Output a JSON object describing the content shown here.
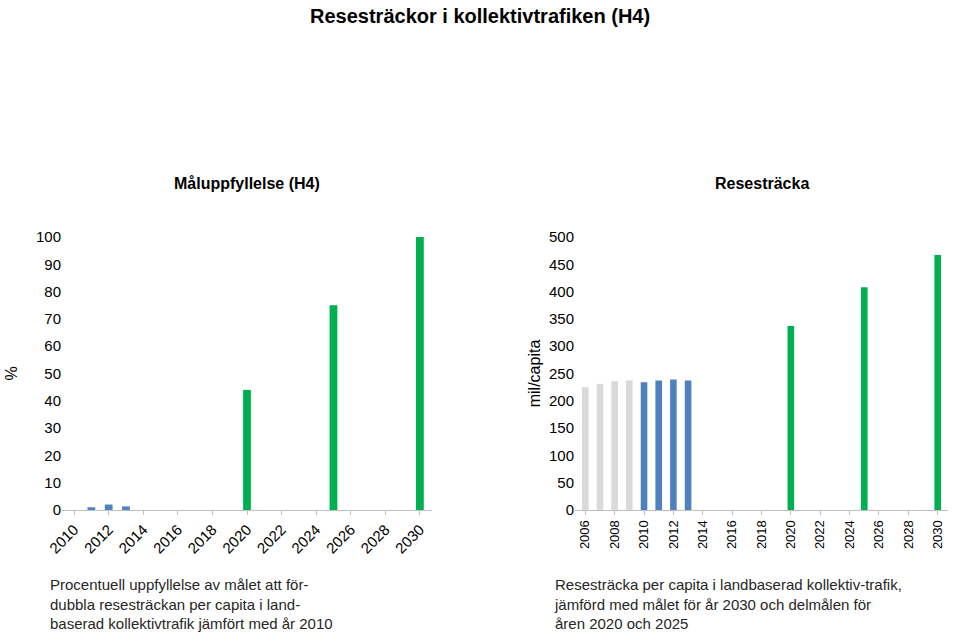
{
  "title": "Resesträckor i kollektivtrafiken (H4)",
  "chart_data": [
    {
      "type": "bar",
      "title": "Måluppfyllelse (H4)",
      "y_label": "%",
      "categories": [
        "2010",
        null,
        "2012",
        null,
        "2014",
        null,
        "2016",
        null,
        "2018",
        null,
        "2020",
        null,
        "2022",
        null,
        "2024",
        null,
        "2026",
        null,
        "2028",
        null,
        "2030"
      ],
      "values": [
        null,
        1,
        2,
        1.3,
        null,
        null,
        null,
        null,
        null,
        null,
        44,
        null,
        null,
        null,
        null,
        75,
        null,
        null,
        null,
        null,
        100
      ],
      "colors": [
        "#4f81bd",
        "#4f81bd",
        "#4f81bd",
        "#4f81bd",
        "#4f81bd",
        "#4f81bd",
        "#4f81bd",
        "#4f81bd",
        "#4f81bd",
        "#4f81bd",
        "#00b050",
        "#00b050",
        "#00b050",
        "#00b050",
        "#00b050",
        "#00b050",
        "#00b050",
        "#00b050",
        "#00b050",
        "#00b050",
        "#00b050"
      ],
      "ylim": [
        0,
        100
      ],
      "yticks": [
        0,
        10,
        20,
        30,
        40,
        50,
        60,
        70,
        80,
        90,
        100
      ],
      "grid": false,
      "caption": [
        "Procentuell uppfyllelse av målet att för-",
        "dubbla resesträckan per capita i land-",
        "baserad kollektivtrafik jämfört med år 2010"
      ]
    },
    {
      "type": "bar",
      "title": "Resesträcka",
      "y_label": "mil/capita",
      "categories": [
        "2006",
        null,
        "2008",
        null,
        "2010",
        null,
        "2012",
        null,
        "2014",
        null,
        "2016",
        null,
        "2018",
        null,
        "2020",
        null,
        "2022",
        null,
        "2024",
        null,
        "2026",
        null,
        "2028",
        null,
        "2030"
      ],
      "values": [
        225,
        231,
        236,
        237,
        234,
        237,
        239,
        237,
        null,
        null,
        null,
        null,
        null,
        null,
        337,
        null,
        null,
        null,
        null,
        408,
        null,
        null,
        null,
        null,
        467
      ],
      "colors": [
        "#d9d9d9",
        "#d9d9d9",
        "#d9d9d9",
        "#d9d9d9",
        "#4f81bd",
        "#4f81bd",
        "#4f81bd",
        "#4f81bd",
        "#4f81bd",
        "#4f81bd",
        "#4f81bd",
        "#4f81bd",
        "#4f81bd",
        "#4f81bd",
        "#00b050",
        "#00b050",
        "#00b050",
        "#00b050",
        "#00b050",
        "#00b050",
        "#00b050",
        "#00b050",
        "#00b050",
        "#00b050",
        "#00b050"
      ],
      "ylim": [
        0,
        500
      ],
      "yticks": [
        0,
        50,
        100,
        150,
        200,
        250,
        300,
        350,
        400,
        450,
        500
      ],
      "grid": false,
      "caption": [
        "Resesträcka per capita i landbaserad kollektiv-trafik,",
        "jämförd med målet för år 2030 och delmålen för",
        "åren 2020 och 2025"
      ]
    }
  ]
}
